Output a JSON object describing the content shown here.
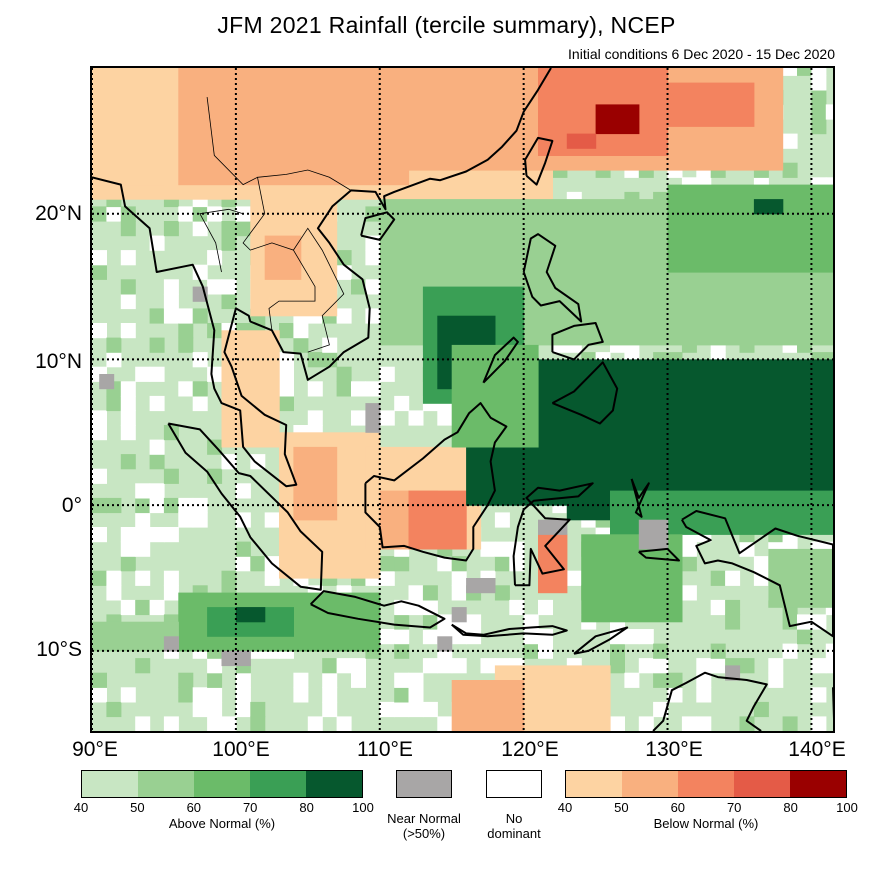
{
  "title": "JFM 2021 Rainfall (tercile summary), NCEP",
  "subtitle": "Initial conditions 6 Dec 2020 - 15 Dec 2020",
  "map": {
    "lon_range": [
      90,
      141.5
    ],
    "lat_range": [
      -15.5,
      30
    ],
    "lat_labels": [
      {
        "lat": 20,
        "text": "20°N"
      },
      {
        "lat": 10,
        "text": "10°N"
      },
      {
        "lat": 0,
        "text": "0°"
      },
      {
        "lat": -10,
        "text": "10°S"
      }
    ],
    "lon_labels": [
      {
        "lon": 90,
        "text": "90°E"
      },
      {
        "lon": 100,
        "text": "100°E"
      },
      {
        "lon": 110,
        "text": "110°E"
      },
      {
        "lon": 120,
        "text": "120°E"
      },
      {
        "lon": 130,
        "text": "130°E"
      },
      {
        "lon": 140,
        "text": "140°E"
      }
    ],
    "colors": {
      "above": [
        "#c8e6c3",
        "#99d092",
        "#6bbb69",
        "#3a9f55",
        "#06582e"
      ],
      "below": [
        "#fdd3a2",
        "#f9b07f",
        "#f3835f",
        "#e45b47",
        "#9a0000"
      ],
      "near": "#a8a6a6",
      "none": "#ffffff"
    }
  },
  "legend": {
    "above": {
      "ticks": [
        "40",
        "50",
        "60",
        "70",
        "80",
        "100"
      ],
      "caption": "Above Normal (%)"
    },
    "near": {
      "caption_line1": "Near Normal",
      "caption_line2": "(>50%)"
    },
    "none": {
      "caption_line1": "No",
      "caption_line2": "dominant"
    },
    "below": {
      "ticks": [
        "40",
        "50",
        "60",
        "70",
        "80",
        "100"
      ],
      "caption": "Below Normal (%)"
    }
  }
}
